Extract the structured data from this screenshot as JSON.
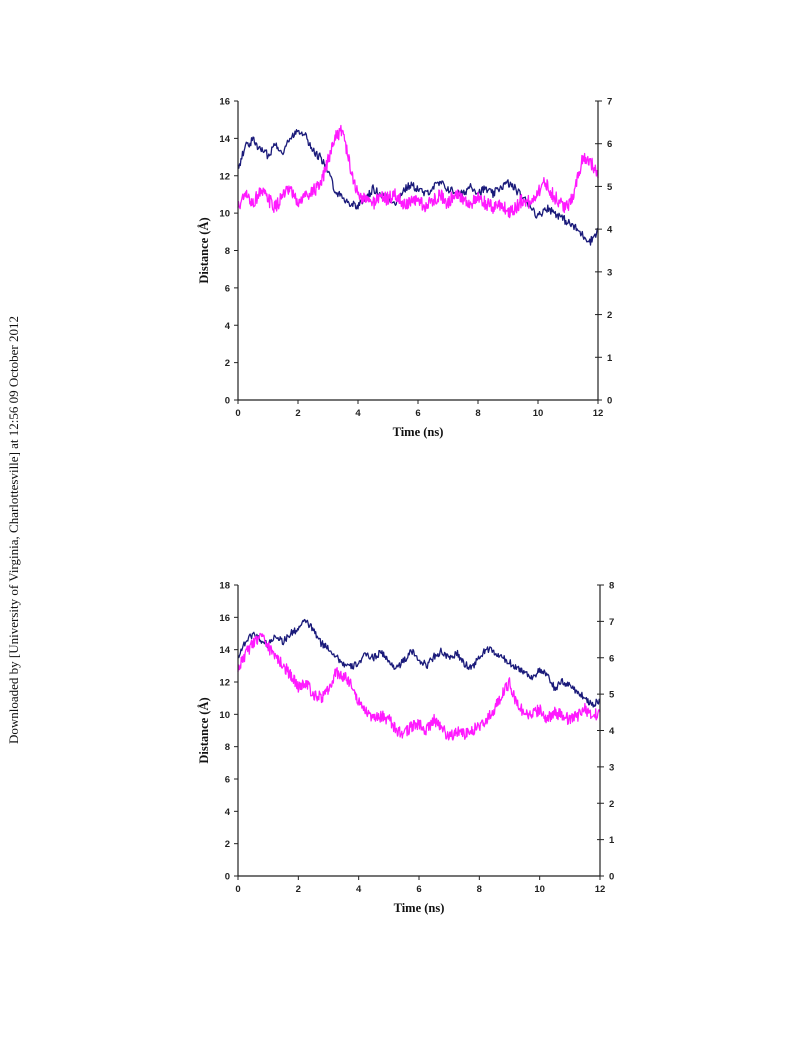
{
  "download_notice": "Downloaded by [University of Virginia, Charlottesville] at 12:56 09 October 2012",
  "colors": {
    "series_a": "#1a1a7a",
    "series_b": "#ff1aff",
    "axis": "#222222"
  },
  "chart_data": [
    {
      "type": "line",
      "xlabel": "Time (ns)",
      "ylabel": "Distance (Å)",
      "xlim": [
        0,
        12
      ],
      "ylim": [
        0,
        16
      ],
      "y2lim": [
        0,
        7
      ],
      "xticks": [
        "0",
        "2",
        "4",
        "6",
        "8",
        "10",
        "12"
      ],
      "yticks": [
        "0",
        "2",
        "4",
        "6",
        "8",
        "10",
        "12",
        "14",
        "16"
      ],
      "y2ticks": [
        "0",
        "1",
        "2",
        "3",
        "4",
        "5",
        "6",
        "7"
      ],
      "grid": false,
      "series": [
        {
          "color": "#1a1a7a",
          "axis": "left",
          "x": [
            0,
            0.25,
            0.5,
            0.75,
            1,
            1.25,
            1.5,
            1.75,
            2,
            2.25,
            2.5,
            2.75,
            3,
            3.25,
            3.5,
            3.75,
            4,
            4.25,
            4.5,
            4.75,
            5,
            5.25,
            5.5,
            5.75,
            6,
            6.25,
            6.5,
            6.75,
            7,
            7.25,
            7.5,
            7.75,
            8,
            8.25,
            8.5,
            8.75,
            9,
            9.25,
            9.5,
            9.75,
            10,
            10.25,
            10.5,
            10.75,
            11,
            11.25,
            11.5,
            11.75,
            12
          ],
          "y": [
            12.4,
            13.6,
            13.9,
            13.4,
            13.1,
            13.7,
            13.3,
            14.0,
            14.5,
            14.2,
            13.3,
            13.0,
            12.2,
            11.2,
            10.8,
            10.5,
            10.4,
            10.8,
            11.3,
            11.0,
            10.8,
            10.6,
            11.2,
            11.5,
            11.3,
            11.0,
            11.4,
            11.6,
            11.3,
            11.1,
            11.0,
            11.5,
            11.1,
            11.3,
            11.0,
            11.4,
            11.6,
            11.3,
            10.8,
            10.4,
            9.8,
            10.3,
            10.1,
            9.8,
            9.5,
            9.2,
            8.8,
            8.5,
            9.1
          ]
        },
        {
          "color": "#ff1aff",
          "axis": "right",
          "x": [
            0,
            0.25,
            0.5,
            0.75,
            1,
            1.25,
            1.5,
            1.75,
            2,
            2.25,
            2.5,
            2.75,
            3,
            3.25,
            3.5,
            3.75,
            4,
            4.25,
            4.5,
            4.75,
            5,
            5.25,
            5.5,
            5.75,
            6,
            6.25,
            6.5,
            6.75,
            7,
            7.25,
            7.5,
            7.75,
            8,
            8.25,
            8.5,
            8.75,
            9,
            9.25,
            9.5,
            9.75,
            10,
            10.25,
            10.5,
            10.75,
            11,
            11.25,
            11.5,
            11.75,
            12
          ],
          "y": [
            4.5,
            4.8,
            4.6,
            4.9,
            4.7,
            4.5,
            4.8,
            4.9,
            4.6,
            4.8,
            4.9,
            5.0,
            5.6,
            6.2,
            6.3,
            5.4,
            4.8,
            4.7,
            4.6,
            4.8,
            4.7,
            4.8,
            4.6,
            4.6,
            4.7,
            4.5,
            4.7,
            4.8,
            4.6,
            4.9,
            4.7,
            4.6,
            4.7,
            4.6,
            4.5,
            4.6,
            4.4,
            4.5,
            4.7,
            4.6,
            4.9,
            5.1,
            4.8,
            4.6,
            4.5,
            5.0,
            5.7,
            5.6,
            5.2
          ]
        }
      ]
    },
    {
      "type": "line",
      "xlabel": "Time (ns)",
      "ylabel": "Distance (Å)",
      "xlim": [
        0,
        12
      ],
      "ylim": [
        0,
        18
      ],
      "y2lim": [
        0,
        8
      ],
      "xticks": [
        "0",
        "2",
        "4",
        "6",
        "8",
        "10",
        "12"
      ],
      "yticks": [
        "0",
        "2",
        "4",
        "6",
        "8",
        "10",
        "12",
        "14",
        "16",
        "18"
      ],
      "y2ticks": [
        "0",
        "1",
        "2",
        "3",
        "4",
        "5",
        "6",
        "7",
        "8"
      ],
      "grid": false,
      "series": [
        {
          "color": "#1a1a7a",
          "axis": "left",
          "x": [
            0,
            0.25,
            0.5,
            0.75,
            1,
            1.25,
            1.5,
            1.75,
            2,
            2.25,
            2.5,
            2.75,
            3,
            3.25,
            3.5,
            3.75,
            4,
            4.25,
            4.5,
            4.75,
            5,
            5.25,
            5.5,
            5.75,
            6,
            6.25,
            6.5,
            6.75,
            7,
            7.25,
            7.5,
            7.75,
            8,
            8.25,
            8.5,
            8.75,
            9,
            9.25,
            9.5,
            9.75,
            10,
            10.25,
            10.5,
            10.75,
            11,
            11.25,
            11.5,
            11.75,
            12
          ],
          "y": [
            13.6,
            14.5,
            15.0,
            14.6,
            14.3,
            14.9,
            14.5,
            15.0,
            15.3,
            15.8,
            15.2,
            14.4,
            14.1,
            13.6,
            13.1,
            12.9,
            13.2,
            13.7,
            13.5,
            13.9,
            13.2,
            12.9,
            13.3,
            13.9,
            13.4,
            13.0,
            13.6,
            13.9,
            13.4,
            13.8,
            13.1,
            12.9,
            13.5,
            14.1,
            13.8,
            13.5,
            13.2,
            12.9,
            12.6,
            12.3,
            12.7,
            12.4,
            11.6,
            12.0,
            11.8,
            11.4,
            11.0,
            10.6,
            10.9
          ]
        },
        {
          "color": "#ff1aff",
          "axis": "right",
          "x": [
            0,
            0.25,
            0.5,
            0.75,
            1,
            1.25,
            1.5,
            1.75,
            2,
            2.25,
            2.5,
            2.75,
            3,
            3.25,
            3.5,
            3.75,
            4,
            4.25,
            4.5,
            4.75,
            5,
            5.25,
            5.5,
            5.75,
            6,
            6.25,
            6.5,
            6.75,
            7,
            7.25,
            7.5,
            7.75,
            8,
            8.25,
            8.5,
            8.75,
            9,
            9.25,
            9.5,
            9.75,
            10,
            10.25,
            10.5,
            10.75,
            11,
            11.25,
            11.5,
            11.75,
            12
          ],
          "y": [
            5.7,
            6.1,
            6.4,
            6.6,
            6.3,
            6.0,
            5.8,
            5.5,
            5.2,
            5.3,
            5.0,
            4.9,
            5.1,
            5.6,
            5.5,
            5.3,
            4.8,
            4.5,
            4.3,
            4.4,
            4.3,
            4.0,
            3.9,
            4.1,
            4.2,
            4.0,
            4.3,
            4.1,
            3.8,
            4.0,
            3.9,
            4.0,
            4.1,
            4.3,
            4.6,
            5.0,
            5.3,
            4.7,
            4.5,
            4.4,
            4.6,
            4.3,
            4.5,
            4.4,
            4.3,
            4.4,
            4.6,
            4.4,
            4.5
          ]
        }
      ]
    }
  ]
}
